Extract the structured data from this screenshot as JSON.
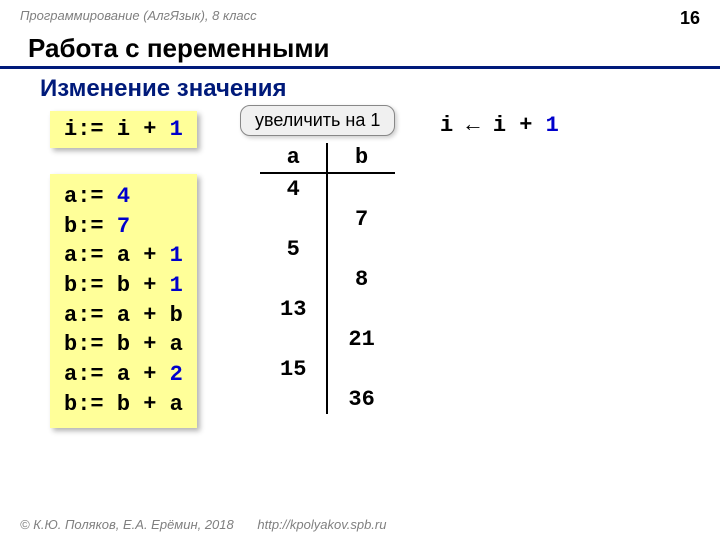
{
  "header": {
    "course": "Программирование (АлгЯзык), 8 класс",
    "page": "16"
  },
  "title": "Работа с переменными",
  "subtitle": "Изменение значения",
  "example1": {
    "var": "i",
    "op": ":= ",
    "rhs_var": "i + ",
    "rhs_num": "1"
  },
  "tooltip": "увеличить на 1",
  "arrow_expr": {
    "lhs": "i ",
    "arrow": "← ",
    "rhs_var": "i + ",
    "rhs_num": "1"
  },
  "code_lines": [
    {
      "lhs": "a:= ",
      "rhs_txt": "",
      "rhs_num": "4"
    },
    {
      "lhs": "b:= ",
      "rhs_txt": "",
      "rhs_num": "7"
    },
    {
      "lhs": "a:= ",
      "rhs_txt": "a + ",
      "rhs_num": "1"
    },
    {
      "lhs": "b:= ",
      "rhs_txt": "b + ",
      "rhs_num": "1"
    },
    {
      "lhs": "a:= ",
      "rhs_txt": "a + b",
      "rhs_num": ""
    },
    {
      "lhs": "b:= ",
      "rhs_txt": "b + a",
      "rhs_num": ""
    },
    {
      "lhs": "a:= ",
      "rhs_txt": "a + ",
      "rhs_num": "2"
    },
    {
      "lhs": "b:= ",
      "rhs_txt": "b + a",
      "rhs_num": ""
    }
  ],
  "trace": {
    "col_a": "a",
    "col_b": "b",
    "rows": [
      {
        "a": "4",
        "b": ""
      },
      {
        "a": "",
        "b": "7"
      },
      {
        "a": "5",
        "b": ""
      },
      {
        "a": "",
        "b": "8"
      },
      {
        "a": "13",
        "b": ""
      },
      {
        "a": "",
        "b": "21"
      },
      {
        "a": "15",
        "b": ""
      },
      {
        "a": "",
        "b": "36"
      }
    ]
  },
  "footer": {
    "copyright": "© К.Ю. Поляков, Е.А. Ерёмин, 2018",
    "url": "http://kpolyakov.spb.ru"
  }
}
